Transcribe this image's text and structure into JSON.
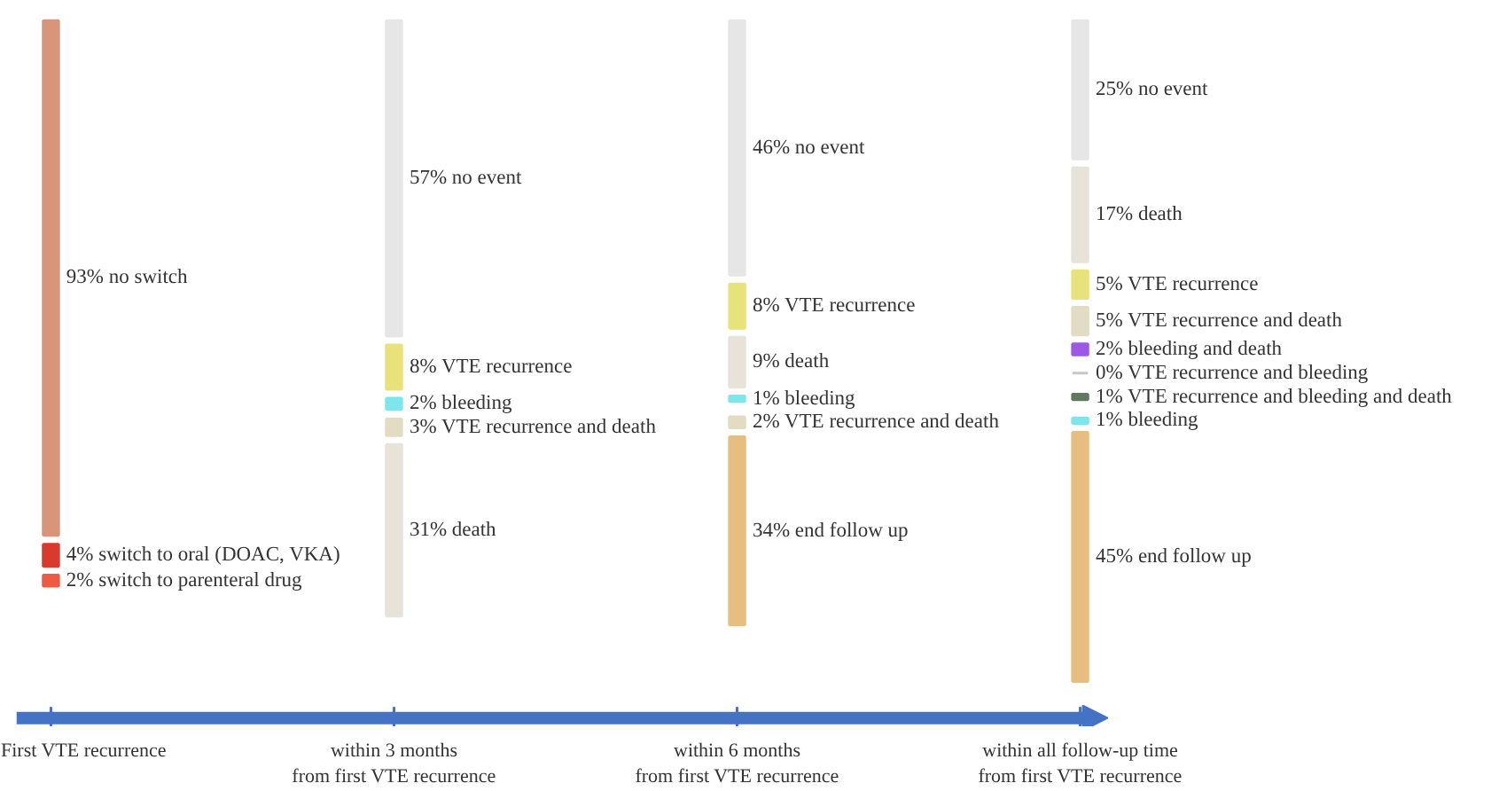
{
  "chart_data": {
    "type": "other",
    "categories": [
      "First VTE recurrence",
      "within 3 months\nfrom first VTE recurrence",
      "within 6 months\nfrom first VTE recurrence",
      "within all follow-up time\nfrom first VTE recurrence"
    ],
    "series": [
      {
        "color": "#d9957a",
        "values": [
          93,
          null,
          null,
          null
        ],
        "value_labels": [
          "93% no switch",
          null,
          null,
          null
        ]
      },
      {
        "color": "#d83a2c",
        "values": [
          4,
          null,
          null,
          null
        ],
        "value_labels": [
          "4% switch to oral (DOAC, VKA)",
          null,
          null,
          null
        ]
      },
      {
        "color": "#ef5a43",
        "values": [
          2,
          null,
          null,
          null
        ],
        "value_labels": [
          "2% switch to parenteral drug",
          null,
          null,
          null
        ]
      },
      {
        "color": "#e6e6e6",
        "values": [
          null,
          57,
          null,
          null
        ],
        "value_labels": [
          null,
          "57% no event",
          null,
          null
        ]
      },
      {
        "color": "#e8e27a",
        "values": [
          null,
          8,
          null,
          null
        ],
        "value_labels": [
          null,
          "8% VTE recurrence",
          null,
          null
        ]
      },
      {
        "color": "#7de6ec",
        "values": [
          null,
          2,
          null,
          null
        ],
        "value_labels": [
          null,
          "2% bleeding",
          null,
          null
        ]
      },
      {
        "color": "#e2dcc2",
        "values": [
          null,
          3,
          null,
          null
        ],
        "value_labels": [
          null,
          "3% VTE recurrence and death",
          null,
          null
        ]
      },
      {
        "color": "#e7e3d9",
        "values": [
          null,
          31,
          null,
          null
        ],
        "value_labels": [
          null,
          "31% death",
          null,
          null
        ]
      },
      {
        "color": "#e6e6e6",
        "values": [
          null,
          null,
          46,
          null
        ],
        "value_labels": [
          null,
          null,
          "46% no event",
          null
        ]
      },
      {
        "color": "#e8e27a",
        "values": [
          null,
          null,
          8,
          null
        ],
        "value_labels": [
          null,
          null,
          "8% VTE recurrence",
          null
        ]
      },
      {
        "color": "#e7e3d9",
        "values": [
          null,
          null,
          9,
          null
        ],
        "value_labels": [
          null,
          null,
          "9% death",
          null
        ]
      },
      {
        "color": "#7de6ec",
        "values": [
          null,
          null,
          1,
          null
        ],
        "value_labels": [
          null,
          null,
          "1% bleeding",
          null
        ]
      },
      {
        "color": "#e2dcc2",
        "values": [
          null,
          null,
          2,
          null
        ],
        "value_labels": [
          null,
          null,
          "2% VTE recurrence and death",
          null
        ]
      },
      {
        "color": "#e6bf80",
        "values": [
          null,
          null,
          34,
          null
        ],
        "value_labels": [
          null,
          null,
          "34% end follow up",
          null
        ]
      },
      {
        "color": "#e6e6e6",
        "values": [
          null,
          null,
          null,
          25
        ],
        "value_labels": [
          null,
          null,
          null,
          "25% no event"
        ]
      },
      {
        "color": "#e7e3d9",
        "values": [
          null,
          null,
          null,
          17
        ],
        "value_labels": [
          null,
          null,
          null,
          "17% death"
        ]
      },
      {
        "color": "#e8e27a",
        "values": [
          null,
          null,
          null,
          5
        ],
        "value_labels": [
          null,
          null,
          null,
          "5% VTE recurrence"
        ]
      },
      {
        "color": "#e2dcc2",
        "values": [
          null,
          null,
          null,
          5
        ],
        "value_labels": [
          null,
          null,
          null,
          "5% VTE recurrence and death"
        ]
      },
      {
        "color": "#9b59e6",
        "values": [
          null,
          null,
          null,
          2
        ],
        "value_labels": [
          null,
          null,
          null,
          "2% bleeding and death"
        ]
      },
      {
        "color": "#c8c8c8",
        "values": [
          null,
          null,
          null,
          0
        ],
        "value_labels": [
          null,
          null,
          null,
          "0% VTE recurrence and bleeding"
        ]
      },
      {
        "color": "#5f7a5f",
        "values": [
          null,
          null,
          null,
          1
        ],
        "value_labels": [
          null,
          null,
          null,
          "1% VTE recurrence and bleeding and death"
        ]
      },
      {
        "color": "#7de6ec",
        "values": [
          null,
          null,
          null,
          1
        ],
        "value_labels": [
          null,
          null,
          null,
          "1% bleeding"
        ]
      },
      {
        "color": "#e6bf80",
        "values": [
          null,
          null,
          null,
          45
        ],
        "value_labels": [
          null,
          null,
          null,
          "45% end follow up"
        ]
      }
    ]
  }
}
